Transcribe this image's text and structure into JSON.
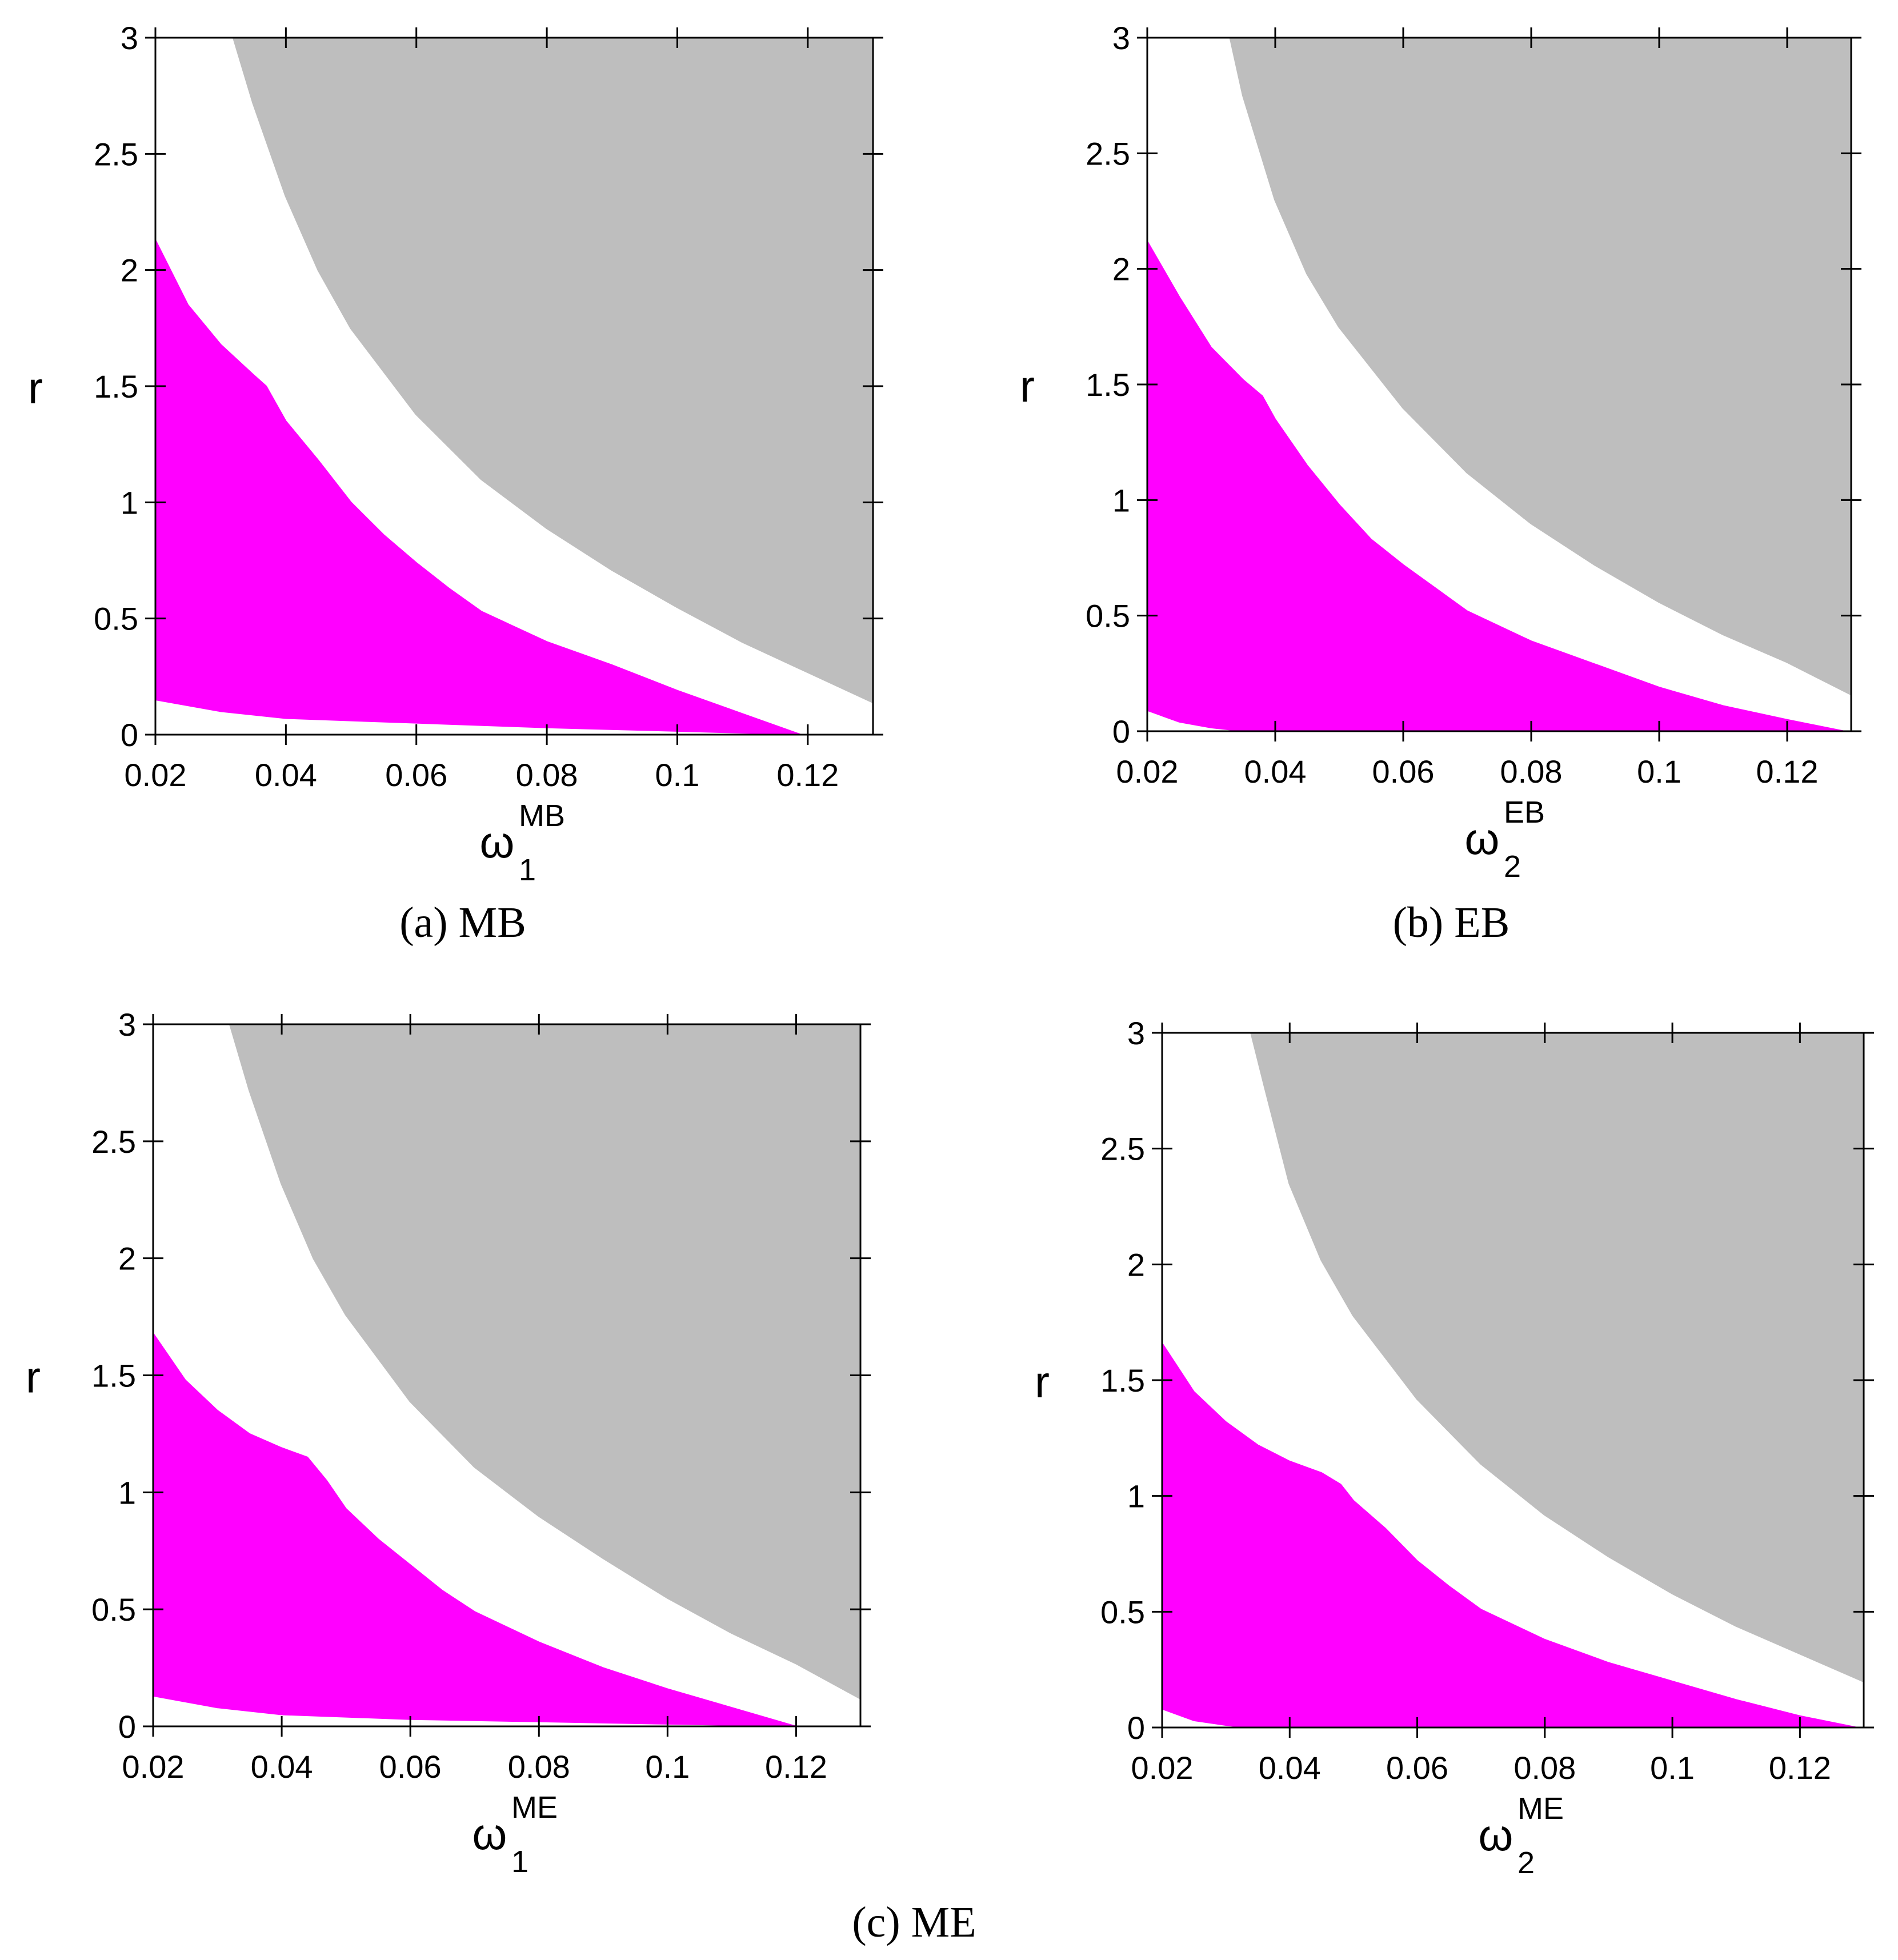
{
  "colors": {
    "stable": "#ff00ff",
    "chaotic": "#bebebe",
    "background": "#ffffff",
    "axis": "#000000"
  },
  "captions": [
    "(a)  MB",
    "(b)  EB",
    "(c)  ME"
  ],
  "chart_data": [
    {
      "type": "area",
      "ylabel": "r",
      "xlabel": {
        "base": "ω",
        "sub": "1",
        "sup": "MB"
      },
      "xlim": [
        0.02,
        0.13
      ],
      "ylim": [
        0,
        3
      ],
      "xticks": [
        "0.02",
        "0.04",
        "0.06",
        "0.08",
        "0.1",
        "0.12"
      ],
      "yticks": [
        "0",
        "0.5",
        "1",
        "1.5",
        "2",
        "2.5",
        "3"
      ],
      "series": [
        {
          "role": "magenta-upper",
          "x": [
            0.02,
            0.025,
            0.03,
            0.035,
            0.037,
            0.04,
            0.045,
            0.05,
            0.055,
            0.06,
            0.065,
            0.07,
            0.08,
            0.09,
            0.1,
            0.11,
            0.119
          ],
          "y": [
            2.13,
            1.85,
            1.68,
            1.55,
            1.5,
            1.35,
            1.18,
            1.0,
            0.86,
            0.74,
            0.63,
            0.53,
            0.4,
            0.3,
            0.19,
            0.09,
            0.0
          ]
        },
        {
          "role": "magenta-lower",
          "x": [
            0.02,
            0.03,
            0.04,
            0.06,
            0.08,
            0.1,
            0.119
          ],
          "y": [
            0.15,
            0.1,
            0.07,
            0.05,
            0.03,
            0.015,
            0.0
          ]
        },
        {
          "role": "gray-boundary",
          "x": [
            0.032,
            0.035,
            0.04,
            0.045,
            0.05,
            0.06,
            0.07,
            0.08,
            0.09,
            0.1,
            0.11,
            0.12,
            0.13
          ],
          "y": [
            3.0,
            2.72,
            2.32,
            2.0,
            1.75,
            1.38,
            1.1,
            0.89,
            0.71,
            0.55,
            0.4,
            0.27,
            0.14
          ]
        }
      ]
    },
    {
      "type": "area",
      "ylabel": "r",
      "xlabel": {
        "base": "ω",
        "sub": "2",
        "sup": "EB"
      },
      "xlim": [
        0.02,
        0.13
      ],
      "ylim": [
        0,
        3
      ],
      "xticks": [
        "0.02",
        "0.04",
        "0.06",
        "0.08",
        "0.1",
        "0.12"
      ],
      "yticks": [
        "0",
        "0.5",
        "1",
        "1.5",
        "2",
        "2.5",
        "3"
      ],
      "series": [
        {
          "role": "magenta-upper",
          "x": [
            0.02,
            0.025,
            0.03,
            0.035,
            0.038,
            0.04,
            0.045,
            0.05,
            0.055,
            0.06,
            0.065,
            0.07,
            0.08,
            0.09,
            0.1,
            0.11,
            0.12,
            0.129
          ],
          "y": [
            2.12,
            1.88,
            1.66,
            1.52,
            1.45,
            1.35,
            1.15,
            0.98,
            0.83,
            0.72,
            0.62,
            0.52,
            0.39,
            0.29,
            0.19,
            0.11,
            0.05,
            0.0
          ]
        },
        {
          "role": "magenta-lower",
          "x": [
            0.02,
            0.025,
            0.03,
            0.035
          ],
          "y": [
            0.09,
            0.04,
            0.015,
            0.0
          ]
        },
        {
          "role": "gray-boundary",
          "x": [
            0.033,
            0.035,
            0.04,
            0.045,
            0.05,
            0.06,
            0.07,
            0.08,
            0.09,
            0.1,
            0.11,
            0.12,
            0.13
          ],
          "y": [
            3.0,
            2.75,
            2.3,
            1.98,
            1.75,
            1.4,
            1.12,
            0.9,
            0.72,
            0.56,
            0.42,
            0.3,
            0.16
          ]
        }
      ]
    },
    {
      "type": "area",
      "ylabel": "r",
      "xlabel": {
        "base": "ω",
        "sub": "1",
        "sup": "ME"
      },
      "xlim": [
        0.02,
        0.13
      ],
      "ylim": [
        0,
        3
      ],
      "xticks": [
        "0.02",
        "0.04",
        "0.06",
        "0.08",
        "0.1",
        "0.12"
      ],
      "yticks": [
        "0",
        "0.5",
        "1",
        "1.5",
        "2",
        "2.5",
        "3"
      ],
      "series": [
        {
          "role": "magenta-upper",
          "x": [
            0.02,
            0.025,
            0.03,
            0.035,
            0.04,
            0.044,
            0.047,
            0.05,
            0.055,
            0.06,
            0.065,
            0.07,
            0.08,
            0.09,
            0.1,
            0.11,
            0.12
          ],
          "y": [
            1.68,
            1.48,
            1.35,
            1.25,
            1.19,
            1.15,
            1.05,
            0.93,
            0.8,
            0.69,
            0.58,
            0.49,
            0.36,
            0.25,
            0.16,
            0.08,
            0.0
          ]
        },
        {
          "role": "magenta-lower",
          "x": [
            0.02,
            0.03,
            0.04,
            0.06,
            0.08,
            0.1,
            0.12
          ],
          "y": [
            0.13,
            0.08,
            0.05,
            0.03,
            0.02,
            0.01,
            0.0
          ]
        },
        {
          "role": "gray-boundary",
          "x": [
            0.032,
            0.035,
            0.04,
            0.045,
            0.05,
            0.06,
            0.07,
            0.08,
            0.09,
            0.1,
            0.11,
            0.12,
            0.13
          ],
          "y": [
            3.0,
            2.72,
            2.32,
            2.0,
            1.76,
            1.39,
            1.11,
            0.9,
            0.72,
            0.55,
            0.4,
            0.27,
            0.12
          ]
        }
      ]
    },
    {
      "type": "area",
      "ylabel": "r",
      "xlabel": {
        "base": "ω",
        "sub": "2",
        "sup": "ME"
      },
      "xlim": [
        0.02,
        0.13
      ],
      "ylim": [
        0,
        3
      ],
      "xticks": [
        "0.02",
        "0.04",
        "0.06",
        "0.08",
        "0.1",
        "0.12"
      ],
      "yticks": [
        "0",
        "0.5",
        "1",
        "1.5",
        "2",
        "2.5",
        "3"
      ],
      "series": [
        {
          "role": "magenta-upper",
          "x": [
            0.02,
            0.025,
            0.03,
            0.035,
            0.04,
            0.045,
            0.048,
            0.05,
            0.055,
            0.06,
            0.065,
            0.07,
            0.08,
            0.09,
            0.1,
            0.11,
            0.12,
            0.129
          ],
          "y": [
            1.66,
            1.45,
            1.32,
            1.22,
            1.15,
            1.1,
            1.05,
            0.98,
            0.86,
            0.72,
            0.61,
            0.51,
            0.38,
            0.28,
            0.2,
            0.12,
            0.05,
            0.0
          ]
        },
        {
          "role": "magenta-lower",
          "x": [
            0.02,
            0.025,
            0.03,
            0.033
          ],
          "y": [
            0.08,
            0.03,
            0.01,
            0.0
          ]
        },
        {
          "role": "gray-boundary",
          "x": [
            0.034,
            0.036,
            0.04,
            0.045,
            0.05,
            0.06,
            0.07,
            0.08,
            0.09,
            0.1,
            0.11,
            0.12,
            0.13
          ],
          "y": [
            3.0,
            2.78,
            2.35,
            2.02,
            1.78,
            1.42,
            1.14,
            0.92,
            0.74,
            0.58,
            0.44,
            0.32,
            0.2
          ]
        }
      ]
    }
  ]
}
